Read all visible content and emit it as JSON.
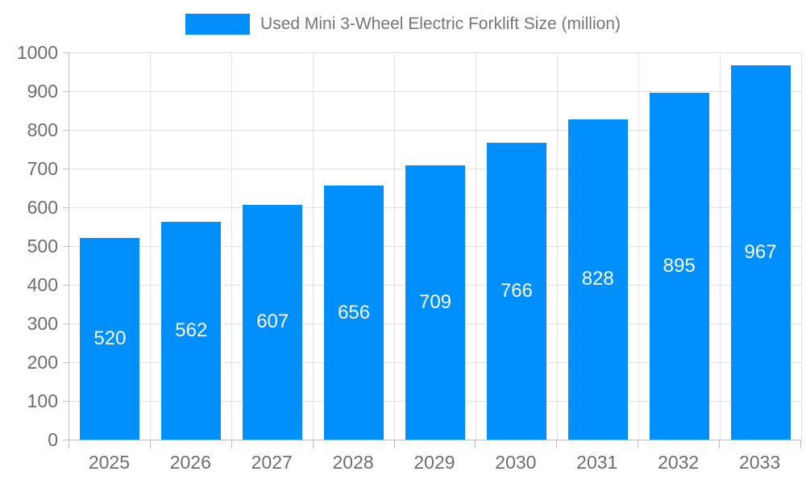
{
  "legend": {
    "series_label": "Used Mini 3-Wheel Electric Forklift Size (million)"
  },
  "colors": {
    "bar": "#008FFB",
    "bar_label": "#ffffff",
    "axis_label": "#6e6e6e",
    "legend_text": "#757575",
    "gridline": "#e4e4e4",
    "axis_line": "#c0c0c0",
    "background": "#ffffff"
  },
  "chart_data": {
    "type": "bar",
    "title": "Used Mini 3-Wheel Electric Forklift Size (million)",
    "categories": [
      "2025",
      "2026",
      "2027",
      "2028",
      "2029",
      "2030",
      "2031",
      "2032",
      "2033"
    ],
    "series": [
      {
        "name": "Used Mini 3-Wheel Electric Forklift Size (million)",
        "values": [
          520,
          562,
          607,
          656,
          709,
          766,
          828,
          895,
          967
        ]
      }
    ],
    "xlabel": "",
    "ylabel": "",
    "ylim": [
      0,
      1000
    ],
    "ytick_step": 100,
    "yticks": [
      0,
      100,
      200,
      300,
      400,
      500,
      600,
      700,
      800,
      900,
      1000
    ],
    "grid": true,
    "legend_position": "top-center",
    "data_labels": "inside-center",
    "bar_color": "#008FFB"
  }
}
